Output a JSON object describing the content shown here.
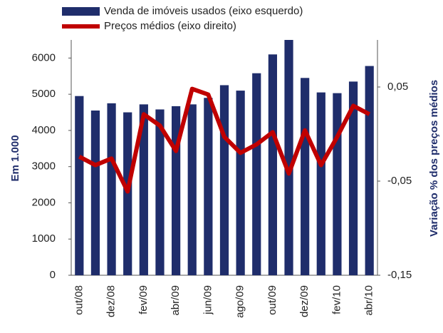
{
  "chart_data": {
    "type": "bar-line",
    "y_label": "Em 1.000",
    "y2_label": "Variação % dos preços médios",
    "categories": [
      "out/08",
      null,
      "dez/08",
      null,
      "fev/09",
      null,
      "abr/09",
      null,
      "jun/09",
      null,
      "ago/09",
      null,
      "out/09",
      null,
      "dez/09",
      null,
      "fev/10",
      null,
      "abr/10"
    ],
    "series": [
      {
        "name": "Venda de imóveis usados (eixo esquerdo)",
        "type": "bar",
        "color": "#1f2d6b",
        "values": [
          4950,
          4550,
          4750,
          4500,
          4720,
          4580,
          4670,
          4720,
          4900,
          5250,
          5100,
          5580,
          6100,
          6500,
          5450,
          5050,
          5030,
          5350,
          5780
        ]
      },
      {
        "name": "Preços médios (eixo direito)",
        "type": "line",
        "color": "#c00000",
        "axis": "y2",
        "values": [
          -0.024,
          -0.033,
          -0.026,
          -0.061,
          0.021,
          0.009,
          -0.018,
          0.048,
          0.042,
          -0.003,
          -0.02,
          -0.011,
          0.002,
          -0.042,
          0.004,
          -0.033,
          -0.003,
          0.03,
          0.021
        ]
      }
    ],
    "ylim": [
      0,
      6500
    ],
    "yticks": [
      0,
      1000,
      2000,
      3000,
      4000,
      5000,
      6000
    ],
    "y2lim": [
      -0.15,
      0.1
    ],
    "y2ticks": [
      {
        "value": 0.05,
        "label": "0,05"
      },
      {
        "value": -0.05,
        "label": "-0,05"
      },
      {
        "value": -0.15,
        "label": "-0,15"
      }
    ]
  }
}
